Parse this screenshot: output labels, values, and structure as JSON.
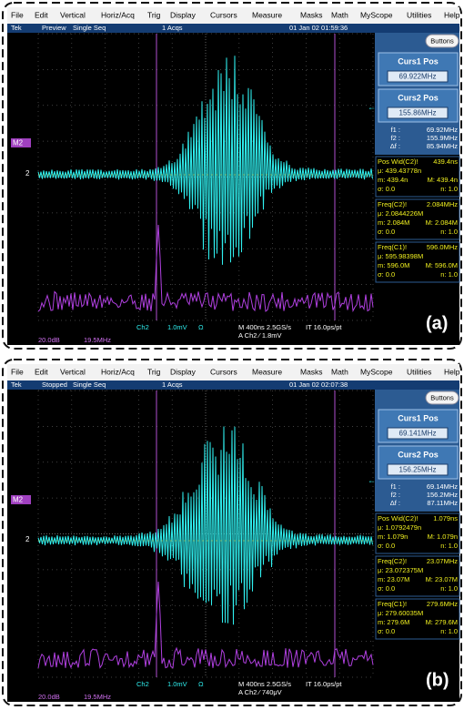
{
  "menu": [
    "File",
    "Edit",
    "Vertical",
    "Horiz/Acq",
    "Trig",
    "Display",
    "Cursors",
    "Measure",
    "Masks",
    "Math",
    "MyScope",
    "Utilities",
    "Help"
  ],
  "panels": [
    {
      "status": {
        "tek": "Tek",
        "state": "Preview",
        "mode": "Single Seq",
        "acqs": "1 Acqs",
        "datetime": "01 Jan 02 01:59:36"
      },
      "buttons": "Buttons",
      "curs1": {
        "label": "Curs1 Pos",
        "value": "69.922MHz"
      },
      "curs2": {
        "label": "Curs2 Pos",
        "value": "155.86MHz"
      },
      "readout": [
        {
          "label": "f1 :",
          "value": "69.92MHz"
        },
        {
          "label": "f2 :",
          "value": "155.9MHz"
        },
        {
          "label": "Δf :",
          "value": "85.94MHz"
        }
      ],
      "measurements": [
        {
          "title": "Pos Wid(C2)!",
          "value": "439.4ns",
          "lines": [
            [
              "μ: 439.43778n"
            ],
            [
              "m: 439.4n",
              "M: 439.4n"
            ],
            [
              "σ: 0.0",
              "n: 1.0"
            ]
          ]
        },
        {
          "title": "Freq(C2)!",
          "value": "2.084MHz",
          "lines": [
            [
              "μ: 2.0844226M"
            ],
            [
              "m: 2.084M",
              "M: 2.084M"
            ],
            [
              "σ: 0.0",
              "n: 1.0"
            ]
          ]
        },
        {
          "title": "Freq(C1)!",
          "value": "596.0MHz",
          "lines": [
            [
              "μ: 595.98398M"
            ],
            [
              "m: 596.0M",
              "M: 596.0M"
            ],
            [
              "σ: 0.0",
              "n: 1.0"
            ]
          ]
        }
      ],
      "markers": {
        "math": "M2",
        "channel": "2"
      },
      "bottom": {
        "channel": "Ch2",
        "scale": "1.0mV",
        "coupling": "Ω",
        "timebase": "M 400ns 2.5GS/s",
        "resolution": "IT 16.0ps/pt",
        "trigger": "A  Ch2  ⁄  1.8mV",
        "math_scale": "20.0dB",
        "math_freq": "19.5MHz"
      },
      "label": "(a)"
    },
    {
      "status": {
        "tek": "Tek",
        "state": "Stopped",
        "mode": "Single Seq",
        "acqs": "1 Acqs",
        "datetime": "01 Jan 02 02:07:38"
      },
      "buttons": "Buttons",
      "curs1": {
        "label": "Curs1 Pos",
        "value": "69.141MHz"
      },
      "curs2": {
        "label": "Curs2 Pos",
        "value": "156.25MHz"
      },
      "readout": [
        {
          "label": "f1 :",
          "value": "69.14MHz"
        },
        {
          "label": "f2 :",
          "value": "156.2MHz"
        },
        {
          "label": "Δf :",
          "value": "87.11MHz"
        }
      ],
      "measurements": [
        {
          "title": "Pos Wid(C2)!",
          "value": "1.079ns",
          "lines": [
            [
              "μ: 1.0792479n"
            ],
            [
              "m: 1.079n",
              "M: 1.079n"
            ],
            [
              "σ: 0.0",
              "n: 1.0"
            ]
          ]
        },
        {
          "title": "Freq(C2)!",
          "value": "23.07MHz",
          "lines": [
            [
              "μ: 23.072375M"
            ],
            [
              "m: 23.07M",
              "M: 23.07M"
            ],
            [
              "σ: 0.0",
              "n: 1.0"
            ]
          ]
        },
        {
          "title": "Freq(C1)!",
          "value": "279.6MHz",
          "lines": [
            [
              "μ: 279.60035M"
            ],
            [
              "m: 279.6M",
              "M: 279.6M"
            ],
            [
              "σ: 0.0",
              "n: 1.0"
            ]
          ]
        }
      ],
      "markers": {
        "math": "M2",
        "channel": "2"
      },
      "bottom": {
        "channel": "Ch2",
        "scale": "1.0mV",
        "coupling": "Ω",
        "timebase": "M 400ns 2.5GS/s",
        "resolution": "IT 16.0ps/pt",
        "trigger": "A  Ch2  ⁄  740μV",
        "math_scale": "20.0dB",
        "math_freq": "19.5MHz"
      },
      "label": "(b)"
    }
  ]
}
